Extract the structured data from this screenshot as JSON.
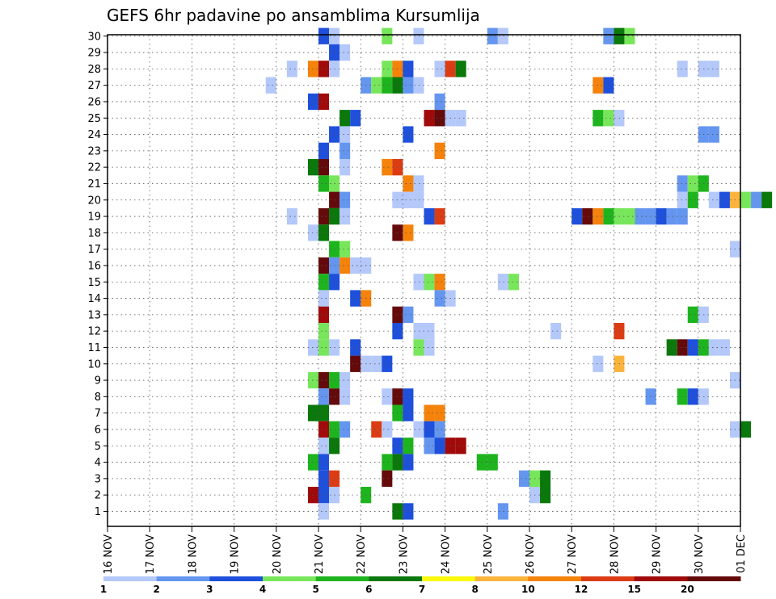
{
  "chart_data": {
    "type": "heatmap",
    "title": "GEFS 6hr padavine po ansamblima Kursumlija",
    "xlabel": "",
    "ylabel": "",
    "x_start": "16 NOV 00Z",
    "step_hours": 6,
    "x_ticks": [
      "16 NOV",
      "17 NOV",
      "18 NOV",
      "19 NOV",
      "20 NOV",
      "21 NOV",
      "22 NOV",
      "23 NOV",
      "24 NOV",
      "25 NOV",
      "26 NOV",
      "27 NOV",
      "28 NOV",
      "29 NOV",
      "30 NOV",
      "01 DEC"
    ],
    "members": [
      "1",
      "2",
      "3",
      "4",
      "5",
      "6",
      "7",
      "8",
      "9",
      "10",
      "11",
      "12",
      "13",
      "14",
      "15",
      "16",
      "17",
      "18",
      "19",
      "20",
      "21",
      "22",
      "23",
      "24",
      "25",
      "26",
      "27",
      "28",
      "29",
      "30"
    ],
    "grid": true,
    "colorbar": {
      "labels": [
        "1",
        "2",
        "3",
        "4",
        "5",
        "6",
        "7",
        "8",
        "10",
        "12",
        "15",
        "20"
      ],
      "colors": [
        "#b4c8fa",
        "#6496f0",
        "#1e50dc",
        "#78e65a",
        "#1eb41e",
        "#0a780a",
        "#fafa0a",
        "#fab43c",
        "#f5820a",
        "#dc3c14",
        "#a00a0a",
        "#640a0a"
      ]
    },
    "cells": [
      {
        "member": "30",
        "times": [
          "2025-11-21 00Z",
          "2025-11-21 06Z",
          "2025-11-22 12Z",
          "2025-11-23 06Z",
          "2025-11-25 00Z",
          "2025-11-25 06Z",
          "2025-11-27 18Z",
          "2025-11-28 00Z",
          "2025-11-28 06Z"
        ],
        "levels": [
          3,
          1,
          4,
          1,
          2,
          1,
          2,
          6,
          4
        ]
      },
      {
        "member": "29",
        "times": [
          "2025-11-21 06Z",
          "2025-11-21 12Z"
        ],
        "levels": [
          3,
          1
        ]
      },
      {
        "member": "28",
        "times": [
          "2025-11-20 06Z",
          "2025-11-20 18Z",
          "2025-11-21 00Z",
          "2025-11-21 06Z",
          "2025-11-22 12Z",
          "2025-11-22 18Z",
          "2025-11-23 00Z",
          "2025-11-23 18Z",
          "2025-11-24 00Z",
          "2025-11-24 06Z",
          "2025-11-29 12Z",
          "2025-11-30 00Z",
          "2025-11-30 06Z"
        ],
        "levels": [
          1,
          10,
          15,
          1,
          4,
          10,
          3,
          1,
          12,
          6,
          1,
          1,
          1
        ]
      },
      {
        "member": "27",
        "times": [
          "2025-11-19 18Z",
          "2025-11-22 00Z",
          "2025-11-22 06Z",
          "2025-11-22 12Z",
          "2025-11-22 18Z",
          "2025-11-23 00Z",
          "2025-11-23 06Z",
          "2025-11-27 12Z",
          "2025-11-27 18Z"
        ],
        "levels": [
          1,
          2,
          4,
          5,
          6,
          2,
          1,
          10,
          3
        ]
      },
      {
        "member": "26",
        "times": [
          "2025-11-20 18Z",
          "2025-11-21 00Z",
          "2025-11-23 18Z"
        ],
        "levels": [
          3,
          15,
          2
        ]
      },
      {
        "member": "25",
        "times": [
          "2025-11-21 12Z",
          "2025-11-21 18Z",
          "2025-11-23 12Z",
          "2025-11-23 18Z",
          "2025-11-24 00Z",
          "2025-11-24 06Z",
          "2025-11-27 12Z",
          "2025-11-27 18Z",
          "2025-11-28 00Z"
        ],
        "levels": [
          6,
          3,
          15,
          20,
          1,
          1,
          5,
          4,
          1
        ]
      },
      {
        "member": "24",
        "times": [
          "2025-11-21 06Z",
          "2025-11-21 12Z",
          "2025-11-23 00Z",
          "2025-11-30 00Z",
          "2025-11-30 06Z"
        ],
        "levels": [
          3,
          1,
          3,
          2,
          2
        ]
      },
      {
        "member": "23",
        "times": [
          "2025-11-21 00Z",
          "2025-11-21 12Z",
          "2025-11-23 18Z"
        ],
        "levels": [
          3,
          2,
          10
        ]
      },
      {
        "member": "22",
        "times": [
          "2025-11-20 18Z",
          "2025-11-21 00Z",
          "2025-11-21 12Z",
          "2025-11-22 12Z",
          "2025-11-22 18Z"
        ],
        "levels": [
          6,
          20,
          1,
          10,
          12
        ]
      },
      {
        "member": "21",
        "times": [
          "2025-11-21 00Z",
          "2025-11-21 06Z",
          "2025-11-23 00Z",
          "2025-11-23 06Z",
          "2025-11-29 12Z",
          "2025-11-29 18Z",
          "2025-11-30 00Z"
        ],
        "levels": [
          5,
          4,
          10,
          1,
          2,
          4,
          5
        ]
      },
      {
        "member": "20",
        "times": [
          "2025-11-21 06Z",
          "2025-11-21 12Z",
          "2025-11-22 18Z",
          "2025-11-23 00Z",
          "2025-11-23 06Z",
          "2025-11-29 12Z",
          "2025-11-29 18Z",
          "2025-11-30 06Z",
          "2025-11-30 12Z",
          "2025-11-30 18Z",
          "2025-12-01 00Z",
          "2025-12-01 06Z",
          "2025-12-01 12Z"
        ],
        "levels": [
          20,
          2,
          1,
          1,
          1,
          1,
          5,
          1,
          3,
          8,
          4,
          2,
          6
        ]
      },
      {
        "member": "19",
        "times": [
          "2025-11-20 06Z",
          "2025-11-21 00Z",
          "2025-11-21 06Z",
          "2025-11-21 12Z",
          "2025-11-23 12Z",
          "2025-11-23 18Z",
          "2025-11-27 00Z",
          "2025-11-27 06Z",
          "2025-11-27 12Z",
          "2025-11-27 18Z",
          "2025-11-28 00Z",
          "2025-11-28 06Z",
          "2025-11-28 12Z",
          "2025-11-28 18Z",
          "2025-11-29 00Z",
          "2025-11-29 06Z",
          "2025-11-29 12Z"
        ],
        "levels": [
          1,
          20,
          6,
          1,
          3,
          12,
          3,
          20,
          10,
          5,
          4,
          4,
          2,
          2,
          3,
          2,
          2
        ]
      },
      {
        "member": "18",
        "times": [
          "2025-11-20 18Z",
          "2025-11-21 00Z",
          "2025-11-22 18Z",
          "2025-11-23 00Z"
        ],
        "levels": [
          1,
          6,
          20,
          10
        ]
      },
      {
        "member": "17",
        "times": [
          "2025-11-21 06Z",
          "2025-11-21 12Z",
          "2025-11-30 18Z"
        ],
        "levels": [
          5,
          4,
          1
        ]
      },
      {
        "member": "16",
        "times": [
          "2025-11-21 00Z",
          "2025-11-21 06Z",
          "2025-11-21 12Z",
          "2025-11-21 18Z",
          "2025-11-22 00Z"
        ],
        "levels": [
          20,
          2,
          10,
          1,
          1
        ]
      },
      {
        "member": "15",
        "times": [
          "2025-11-21 00Z",
          "2025-11-21 06Z",
          "2025-11-23 06Z",
          "2025-11-23 12Z",
          "2025-11-23 18Z",
          "2025-11-25 06Z",
          "2025-11-25 12Z"
        ],
        "levels": [
          5,
          3,
          1,
          4,
          10,
          1,
          4
        ]
      },
      {
        "member": "14",
        "times": [
          "2025-11-21 00Z",
          "2025-11-21 18Z",
          "2025-11-22 00Z",
          "2025-11-23 18Z",
          "2025-11-24 00Z"
        ],
        "levels": [
          1,
          3,
          10,
          2,
          1
        ]
      },
      {
        "member": "13",
        "times": [
          "2025-11-21 00Z",
          "2025-11-22 18Z",
          "2025-11-23 00Z",
          "2025-11-29 18Z",
          "2025-11-30 00Z"
        ],
        "levels": [
          15,
          20,
          2,
          5,
          1
        ]
      },
      {
        "member": "12",
        "times": [
          "2025-11-21 00Z",
          "2025-11-22 18Z",
          "2025-11-23 06Z",
          "2025-11-23 12Z",
          "2025-11-26 12Z",
          "2025-11-28 00Z"
        ],
        "levels": [
          4,
          3,
          1,
          1,
          1,
          12
        ]
      },
      {
        "member": "11",
        "times": [
          "2025-11-20 18Z",
          "2025-11-21 00Z",
          "2025-11-21 06Z",
          "2025-11-21 18Z",
          "2025-11-23 06Z",
          "2025-11-23 12Z",
          "2025-11-29 06Z",
          "2025-11-29 12Z",
          "2025-11-29 18Z",
          "2025-11-30 00Z",
          "2025-11-30 06Z",
          "2025-11-30 12Z"
        ],
        "levels": [
          1,
          4,
          1,
          3,
          4,
          1,
          6,
          20,
          3,
          5,
          1,
          1
        ]
      },
      {
        "member": "10",
        "times": [
          "2025-11-21 18Z",
          "2025-11-22 00Z",
          "2025-11-22 06Z",
          "2025-11-22 12Z",
          "2025-11-27 12Z",
          "2025-11-28 00Z"
        ],
        "levels": [
          20,
          1,
          1,
          3,
          1,
          8
        ]
      },
      {
        "member": "9",
        "times": [
          "2025-11-20 18Z",
          "2025-11-21 00Z",
          "2025-11-21 06Z",
          "2025-11-21 12Z",
          "2025-11-30 18Z"
        ],
        "levels": [
          4,
          20,
          5,
          1,
          1
        ]
      },
      {
        "member": "8",
        "times": [
          "2025-11-21 00Z",
          "2025-11-21 06Z",
          "2025-11-21 12Z",
          "2025-11-22 12Z",
          "2025-11-22 18Z",
          "2025-11-23 00Z",
          "2025-11-28 18Z",
          "2025-11-29 12Z",
          "2025-11-29 18Z",
          "2025-11-30 00Z"
        ],
        "levels": [
          2,
          20,
          1,
          1,
          20,
          3,
          2,
          5,
          3,
          1
        ]
      },
      {
        "member": "7",
        "times": [
          "2025-11-20 18Z",
          "2025-11-21 00Z",
          "2025-11-22 18Z",
          "2025-11-23 00Z",
          "2025-11-23 12Z",
          "2025-11-23 18Z"
        ],
        "levels": [
          6,
          6,
          5,
          3,
          10,
          10
        ]
      },
      {
        "member": "6",
        "times": [
          "2025-11-21 00Z",
          "2025-11-21 06Z",
          "2025-11-21 12Z",
          "2025-11-22 06Z",
          "2025-11-22 12Z",
          "2025-11-23 06Z",
          "2025-11-23 12Z",
          "2025-11-23 18Z",
          "2025-11-30 18Z",
          "2025-12-01 00Z"
        ],
        "levels": [
          15,
          5,
          2,
          12,
          1,
          1,
          3,
          2,
          1,
          6
        ]
      },
      {
        "member": "5",
        "times": [
          "2025-11-21 00Z",
          "2025-11-21 06Z",
          "2025-11-22 18Z",
          "2025-11-23 00Z",
          "2025-11-23 12Z",
          "2025-11-23 18Z",
          "2025-11-24 00Z",
          "2025-11-24 06Z"
        ],
        "levels": [
          1,
          6,
          3,
          5,
          2,
          3,
          15,
          15
        ]
      },
      {
        "member": "4",
        "times": [
          "2025-11-20 18Z",
          "2025-11-21 00Z",
          "2025-11-22 12Z",
          "2025-11-22 18Z",
          "2025-11-23 00Z",
          "2025-11-24 18Z",
          "2025-11-25 00Z"
        ],
        "levels": [
          5,
          3,
          5,
          6,
          3,
          5,
          5
        ]
      },
      {
        "member": "3",
        "times": [
          "2025-11-21 00Z",
          "2025-11-21 06Z",
          "2025-11-22 12Z",
          "2025-11-25 18Z",
          "2025-11-26 00Z",
          "2025-11-26 06Z"
        ],
        "levels": [
          3,
          12,
          20,
          2,
          4,
          6
        ]
      },
      {
        "member": "2",
        "times": [
          "2025-11-20 18Z",
          "2025-11-21 00Z",
          "2025-11-21 06Z",
          "2025-11-22 00Z",
          "2025-11-26 00Z",
          "2025-11-26 06Z"
        ],
        "levels": [
          15,
          3,
          1,
          5,
          1,
          6
        ]
      },
      {
        "member": "1",
        "times": [
          "2025-11-21 00Z",
          "2025-11-22 18Z",
          "2025-11-23 00Z",
          "2025-11-25 06Z"
        ],
        "levels": [
          1,
          6,
          3,
          2
        ]
      }
    ]
  }
}
